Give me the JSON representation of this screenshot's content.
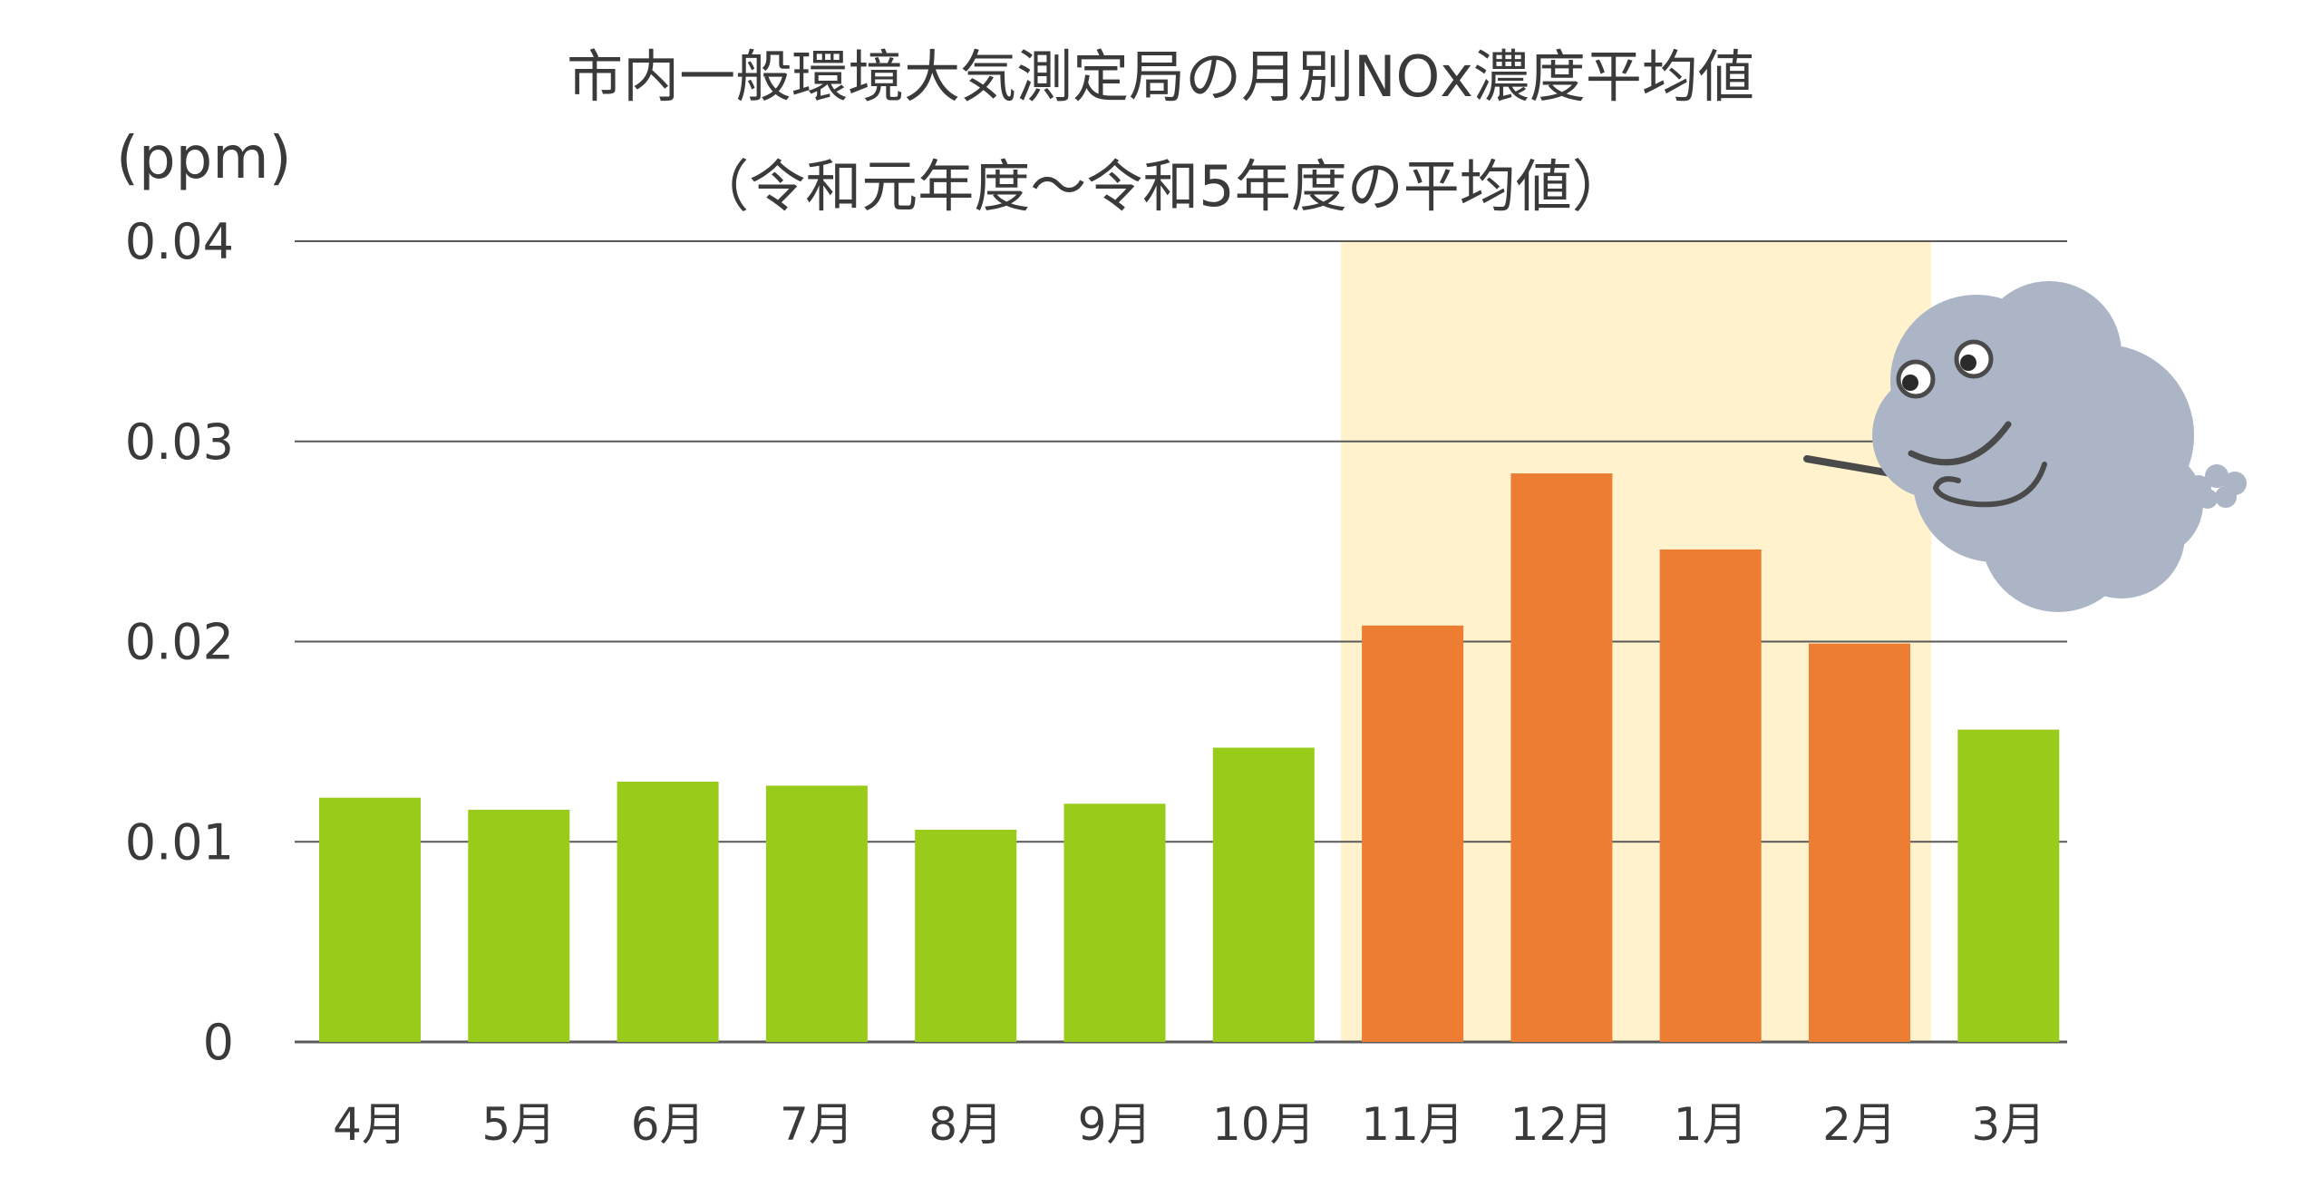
{
  "chart_data": {
    "type": "bar",
    "title": "市内一般環境大気測定局の月別NOx濃度平均値",
    "subtitle": "（令和元年度～令和5年度の平均値）",
    "ylabel": "(ppm)",
    "ylim": [
      0,
      0.04
    ],
    "yticks": [
      "0",
      "0.01",
      "0.02",
      "0.03",
      "0.04"
    ],
    "ytick_values": [
      0,
      0.01,
      0.02,
      0.03,
      0.04
    ],
    "categories": [
      "4月",
      "5月",
      "6月",
      "7月",
      "8月",
      "9月",
      "10月",
      "11月",
      "12月",
      "1月",
      "2月",
      "3月"
    ],
    "values": [
      0.0122,
      0.0116,
      0.013,
      0.0128,
      0.0106,
      0.0119,
      0.0147,
      0.0208,
      0.0284,
      0.0246,
      0.0199,
      0.0156
    ],
    "highlighted_categories": [
      "11月",
      "12月",
      "1月",
      "2月"
    ],
    "grid": true,
    "colors": {
      "normal_bar": "#99cc1a",
      "highlight_bar": "#ec7d32",
      "highlight_band": "#fff2cc",
      "gridline": "#595959",
      "mascot_body": "#abb5c6"
    }
  }
}
